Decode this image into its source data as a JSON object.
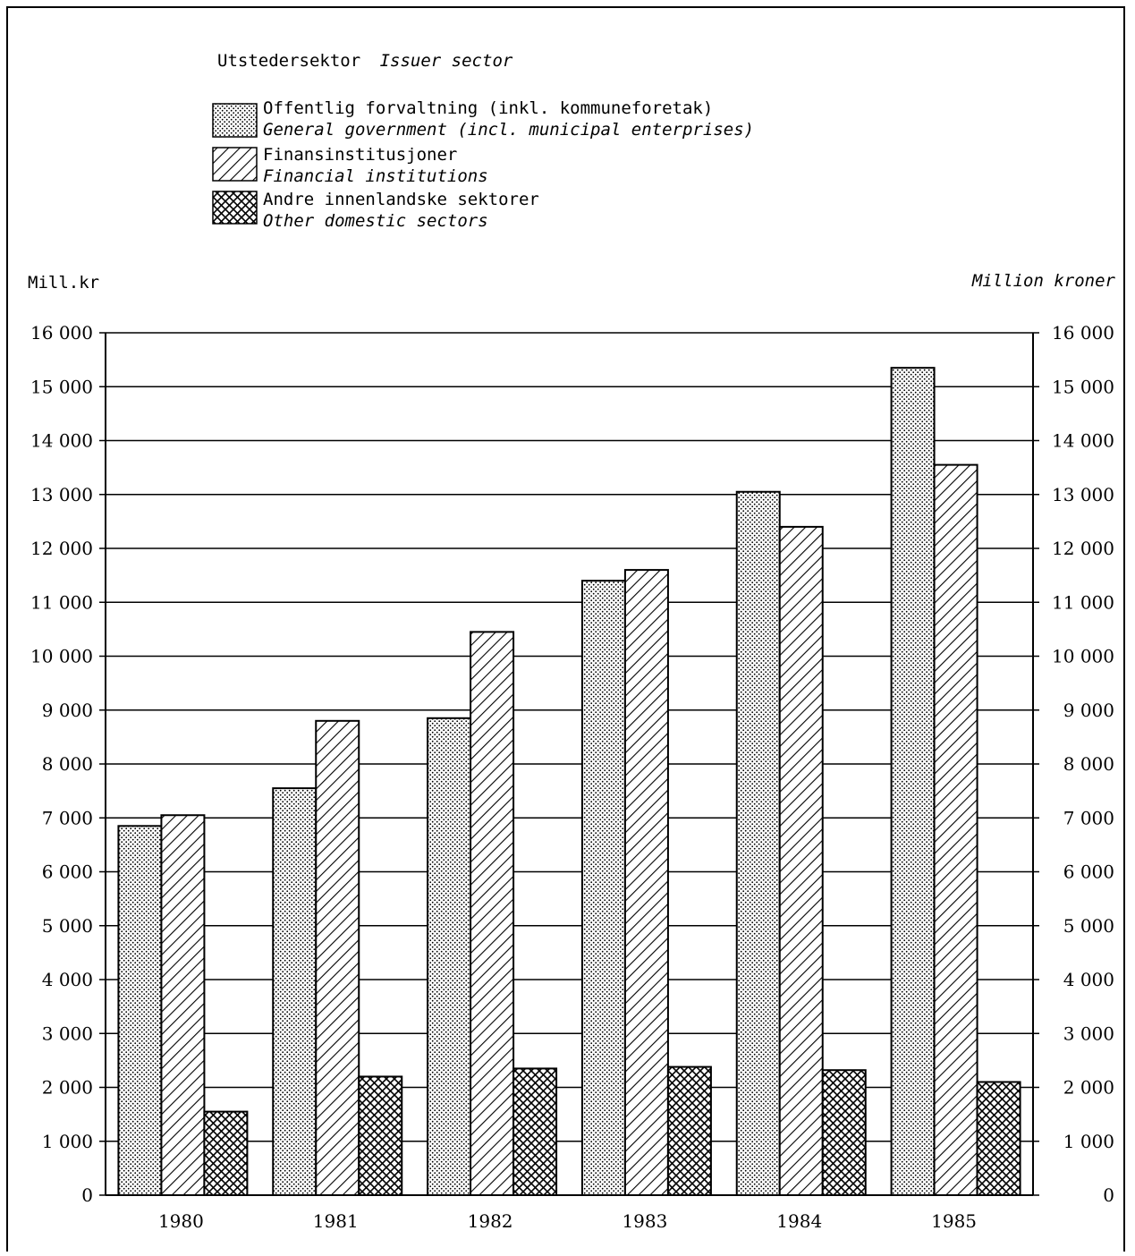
{
  "chart_data": {
    "type": "bar",
    "legend": {
      "title": "Utstedersektor",
      "title_en": "Issuer sector",
      "placement": "top-left"
    },
    "ylabel_left": "Mill.kr",
    "ylabel_right": "Million kroner",
    "ylim": [
      0,
      16000
    ],
    "yticks": [
      "0",
      "1 000",
      "2 000",
      "3 000",
      "4 000",
      "5 000",
      "6 000",
      "7 000",
      "8 000",
      "9 000",
      "10 000",
      "11 000",
      "12 000",
      "13 000",
      "14 000",
      "15 000",
      "16 000"
    ],
    "grid": true,
    "categories": [
      "1980",
      "1981",
      "1982",
      "1983",
      "1984",
      "1985"
    ],
    "series": [
      {
        "name": "Offentlig forvaltning (inkl. kommuneforetak)",
        "name_en": "General government (incl. municipal enterprises)",
        "pattern": "dots",
        "values": [
          6850,
          7550,
          8850,
          11400,
          13050,
          15350
        ]
      },
      {
        "name": "Finansinstitusjoner",
        "name_en": "Financial institutions",
        "pattern": "diagonal",
        "values": [
          7050,
          8800,
          10450,
          11600,
          12400,
          13550
        ]
      },
      {
        "name": "Andre innenlandske sektorer",
        "name_en": "Other domestic sectors",
        "pattern": "crosshatch",
        "values": [
          1550,
          2200,
          2350,
          2380,
          2320,
          2100
        ]
      }
    ]
  }
}
